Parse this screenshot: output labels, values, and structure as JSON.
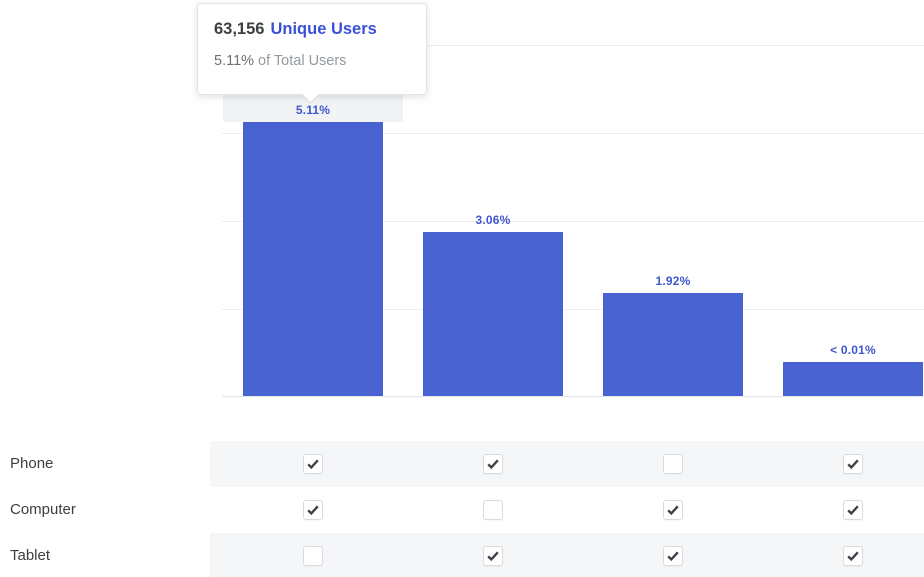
{
  "tooltip": {
    "value": "63,156",
    "metric": "Unique Users",
    "percent": "5.11%",
    "percent_suffix": "of Total Users"
  },
  "chart_data": {
    "type": "bar",
    "title": "",
    "xlabel": "",
    "ylabel": "",
    "categories": [
      "Phone + Computer",
      "Phone + Tablet",
      "Computer + Tablet",
      "Phone + Computer + Tablet"
    ],
    "series": [
      {
        "name": "Unique Users (% of Total Users)",
        "values": [
          5.11,
          3.06,
          1.92,
          0.005
        ]
      }
    ],
    "value_labels": [
      "5.11%",
      "3.06%",
      "1.92%",
      "< 0.01%"
    ],
    "ylim": [
      0,
      6.5
    ],
    "grid": true,
    "legend": false,
    "highlighted_bar_index": 0
  },
  "matrix": {
    "rows": [
      {
        "label": "Phone",
        "checks": [
          true,
          true,
          false,
          true
        ]
      },
      {
        "label": "Computer",
        "checks": [
          true,
          false,
          true,
          true
        ]
      },
      {
        "label": "Tablet",
        "checks": [
          false,
          true,
          true,
          true
        ]
      }
    ]
  },
  "colors": {
    "bar": "#4862d2",
    "value_label": "#4157cd",
    "tooltip_value": "#3c4043",
    "tooltip_metric": "#3a50d9",
    "check": "#3d4247",
    "stripe": "#f5f6f8",
    "gridline": "#ebedee"
  }
}
